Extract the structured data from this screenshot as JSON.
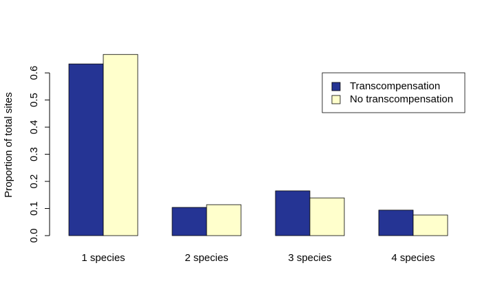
{
  "chart_data": {
    "type": "bar",
    "y_label": "Proportion of total sites",
    "categories": [
      "1 species",
      "2 species",
      "3 species",
      "4 species"
    ],
    "series": [
      {
        "name": "Transcompensation",
        "color": "#253494",
        "values": [
          0.633,
          0.104,
          0.165,
          0.094
        ]
      },
      {
        "name": "No transcompensation",
        "color": "#ffffcc",
        "values": [
          0.668,
          0.114,
          0.139,
          0.076
        ]
      }
    ],
    "ylim": [
      0,
      0.694
    ],
    "yticks": [
      {
        "value": 0,
        "label": "0.0"
      },
      0.1,
      0.2,
      0.3,
      0.4,
      0.5,
      0.6
    ],
    "legend": "top-right"
  }
}
